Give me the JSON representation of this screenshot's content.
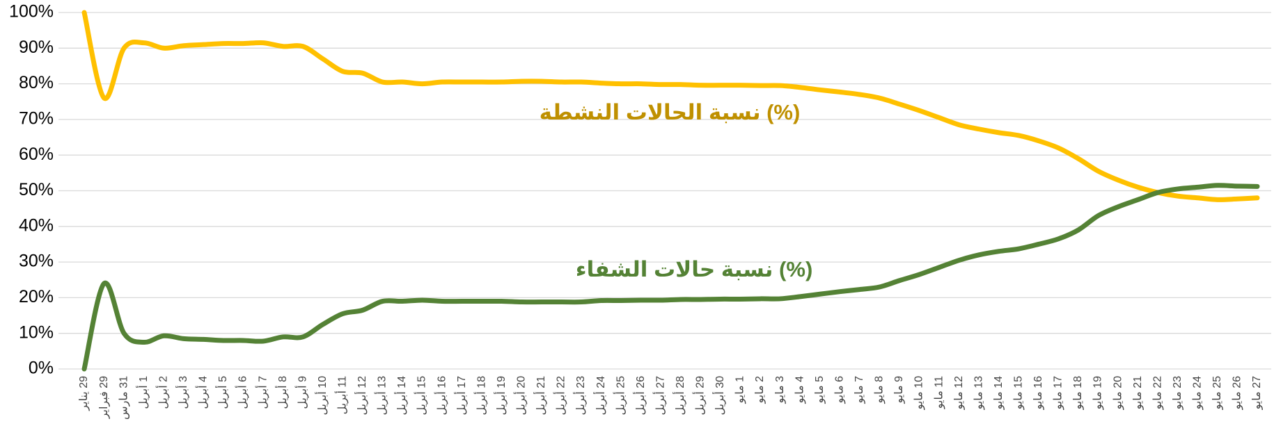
{
  "chart_data": {
    "type": "line",
    "categories": [
      "29 يناير",
      "29 فبراير",
      "31 مارس",
      "1 أبريل",
      "2 أبريل",
      "3 أبريل",
      "4 أبريل",
      "5 أبريل",
      "6 أبريل",
      "7 أبريل",
      "8 أبريل",
      "9 أبريل",
      "10 أبريل",
      "11 أبريل",
      "12 أبريل",
      "13 أبريل",
      "14 أبريل",
      "15 أبريل",
      "16 أبريل",
      "17 أبريل",
      "18 أبريل",
      "19 أبريل",
      "20 أبريل",
      "21 أبريل",
      "22 أبريل",
      "23 أبريل",
      "24 أبريل",
      "25 أبريل",
      "26 أبريل",
      "27 أبريل",
      "28 أبريل",
      "29 أبريل",
      "30 أبريل",
      "1 مايو",
      "2 مايو",
      "3 مايو",
      "4 مايو",
      "5 مايو",
      "6 مايو",
      "7 مايو",
      "8 مايو",
      "9 مايو",
      "10 مايو",
      "11 مايو",
      "12 مايو",
      "13 مايو",
      "14 مايو",
      "15 مايو",
      "16 مايو",
      "17 مايو",
      "18 مايو",
      "19 مايو",
      "20 مايو",
      "21 مايو",
      "22 مايو",
      "23 مايو",
      "24 مايو",
      "25 مايو",
      "26 مايو",
      "27 مايو"
    ],
    "series": [
      {
        "name": "نسبة الحالات النشطة (%)",
        "color": "#ffc000",
        "label_color": "#bf9000",
        "values": [
          100,
          76,
          90,
          91.5,
          90,
          90.7,
          91,
          91.3,
          91.3,
          91.5,
          90.5,
          90.5,
          87,
          83.5,
          83,
          80.5,
          80.5,
          80,
          80.5,
          80.5,
          80.5,
          80.5,
          80.7,
          80.7,
          80.5,
          80.5,
          80.2,
          80,
          80,
          79.8,
          79.8,
          79.6,
          79.6,
          79.6,
          79.5,
          79.5,
          79,
          78.3,
          77.7,
          77,
          76,
          74.3,
          72.5,
          70.5,
          68.5,
          67.3,
          66.3,
          65.5,
          64,
          62,
          59,
          55.5,
          53,
          51,
          49.5,
          48.5,
          48,
          47.5,
          47.7,
          48
        ]
      },
      {
        "name": "نسبة حالات الشفاء (%)",
        "color": "#548235",
        "label_color": "#548235",
        "values": [
          0,
          24,
          10,
          7.5,
          9.3,
          8.5,
          8.3,
          8,
          8,
          7.8,
          9,
          9,
          12.5,
          15.5,
          16.5,
          19,
          19,
          19.3,
          19,
          19,
          19,
          19,
          18.8,
          18.8,
          18.8,
          18.8,
          19.2,
          19.2,
          19.3,
          19.3,
          19.5,
          19.5,
          19.6,
          19.6,
          19.7,
          19.7,
          20.3,
          21,
          21.7,
          22.3,
          23,
          24.8,
          26.5,
          28.5,
          30.5,
          32,
          33,
          33.7,
          35,
          36.5,
          39,
          43,
          45.5,
          47.5,
          49.5,
          50.5,
          51,
          51.5,
          51.3,
          51.2
        ]
      }
    ],
    "ylim": [
      0,
      100
    ],
    "yticks": [
      {
        "value": 0,
        "label": "0%"
      },
      {
        "value": 10,
        "label": "10%"
      },
      {
        "value": 20,
        "label": "20%"
      },
      {
        "value": 30,
        "label": "30%"
      },
      {
        "value": 40,
        "label": "40%"
      },
      {
        "value": 50,
        "label": "50%"
      },
      {
        "value": 60,
        "label": "60%"
      },
      {
        "value": 70,
        "label": "70%"
      },
      {
        "value": 80,
        "label": "80%"
      },
      {
        "value": 90,
        "label": "90%"
      },
      {
        "value": 100,
        "label": "100%"
      }
    ],
    "grid": true
  }
}
